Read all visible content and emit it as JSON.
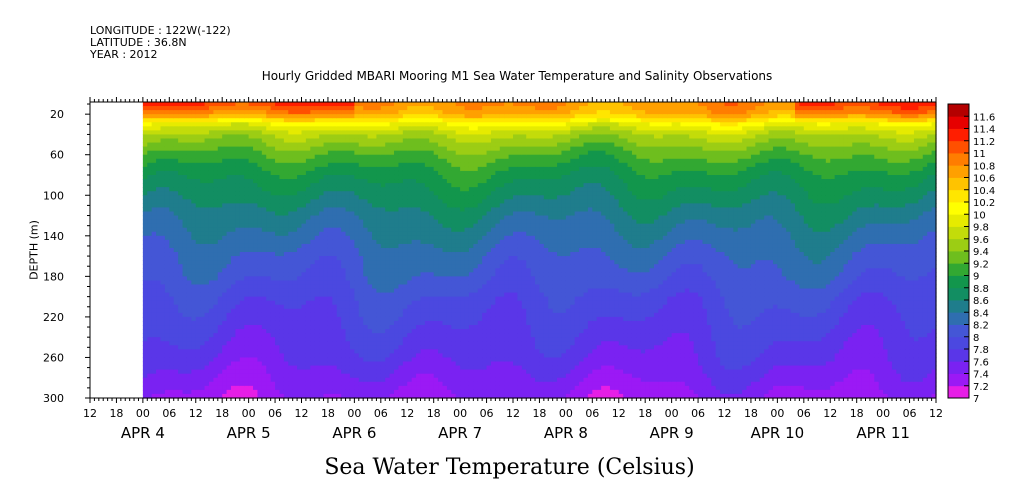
{
  "header": {
    "longitude": "LONGITUDE : 122W(-122)",
    "latitude": "LATITUDE : 36.8N",
    "year": "YEAR : 2012",
    "title": "Hourly Gridded MBARI Mooring M1 Sea Water Temperature and Salinity Observations"
  },
  "colors": {
    "missing": "#ffffff",
    "axis": "#000000"
  },
  "chart_data": {
    "type": "heatmap",
    "title": "Hourly Gridded MBARI Mooring M1 Sea Water Temperature and Salinity Observations",
    "xlabel": "",
    "ylabel": "DEPTH (m)",
    "colorbar_label": "Sea Water Temperature (Celsius)",
    "x_start": "APR 3 12:00",
    "x_end": "APR 11 12:00",
    "data_start": "APR 4 00:00",
    "x_hour_ticks": [
      "12",
      "18",
      "00",
      "06",
      "12",
      "18",
      "00",
      "06",
      "12",
      "18",
      "00",
      "06",
      "12",
      "18",
      "00",
      "06",
      "12",
      "18",
      "00",
      "06",
      "12",
      "18",
      "00",
      "06",
      "12",
      "18",
      "00",
      "06",
      "12",
      "18",
      "00",
      "06",
      "12"
    ],
    "x_day_labels": [
      "APR 4",
      "APR 5",
      "APR 6",
      "APR 7",
      "APR 8",
      "APR 9",
      "APR 10",
      "APR 11"
    ],
    "y_ticks": [
      20,
      60,
      100,
      140,
      180,
      220,
      260,
      300
    ],
    "ylim": [
      300,
      8
    ],
    "colorbar_levels": [
      "7",
      "7.2",
      "7.4",
      "7.6",
      "7.8",
      "8",
      "8.2",
      "8.4",
      "8.6",
      "8.8",
      "9",
      "9.2",
      "9.4",
      "9.6",
      "9.8",
      "10",
      "10.2",
      "10.4",
      "10.6",
      "10.8",
      "11",
      "11.2",
      "11.4",
      "11.6"
    ],
    "colorbar_colors": [
      "#e61ee6",
      "#9b19f5",
      "#7a22f2",
      "#5a36e8",
      "#4b48e0",
      "#4456d6",
      "#2f6eb0",
      "#1f7d8c",
      "#128e62",
      "#12964c",
      "#32a832",
      "#6ebe1e",
      "#9ccd14",
      "#c3dc0a",
      "#e6eb00",
      "#ffff00",
      "#ffe600",
      "#ffc300",
      "#ffa000",
      "#ff7d00",
      "#ff5000",
      "#ff1e00",
      "#e60000",
      "#b40000"
    ],
    "depth_profile": [
      {
        "depth": 8,
        "temp": 10.8
      },
      {
        "depth": 20,
        "temp": 10.6
      },
      {
        "depth": 30,
        "temp": 10.0
      },
      {
        "depth": 40,
        "temp": 9.6
      },
      {
        "depth": 60,
        "temp": 9.2
      },
      {
        "depth": 80,
        "temp": 8.9
      },
      {
        "depth": 100,
        "temp": 8.7
      },
      {
        "depth": 120,
        "temp": 8.5
      },
      {
        "depth": 140,
        "temp": 8.35
      },
      {
        "depth": 160,
        "temp": 8.2
      },
      {
        "depth": 180,
        "temp": 8.1
      },
      {
        "depth": 200,
        "temp": 7.95
      },
      {
        "depth": 220,
        "temp": 7.85
      },
      {
        "depth": 240,
        "temp": 7.75
      },
      {
        "depth": 260,
        "temp": 7.65
      },
      {
        "depth": 280,
        "temp": 7.5
      },
      {
        "depth": 300,
        "temp": 7.35
      }
    ]
  }
}
